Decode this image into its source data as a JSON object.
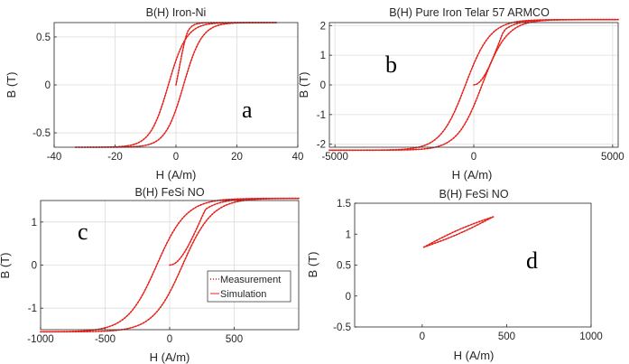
{
  "chart_data": [
    {
      "type": "line",
      "title": "B(H) Iron-Ni",
      "xlabel": "H (A/m)",
      "ylabel": "B (T)",
      "xlim": [
        -40,
        40
      ],
      "ylim": [
        -0.65,
        0.65
      ],
      "xticks": [
        -40,
        -20,
        0,
        20,
        40
      ],
      "yticks": [
        -0.5,
        0,
        0.5
      ],
      "xtick_labels": [
        "-40",
        "-20",
        "0",
        "20",
        "40"
      ],
      "ytick_labels": [
        "-0.5",
        "0",
        "0.5"
      ],
      "grid": true,
      "panel_label": "a",
      "loop": {
        "Hmax": 33,
        "Hc": 2.5,
        "Bs": 0.65,
        "Hs": 6,
        "Hi": 3,
        "width": 0.4,
        "initial": true,
        "seed": 0.7
      },
      "series": [
        {
          "name": "Measurement",
          "color": "#e8201a",
          "style": "dotted"
        },
        {
          "name": "Simulation",
          "color": "#e8201a",
          "style": "solid"
        }
      ]
    },
    {
      "type": "line",
      "title": "B(H) Pure Iron Telar 57 ARMCO",
      "xlabel": "H (A/m)",
      "ylabel": "B (T)",
      "xlim": [
        -5200,
        5200
      ],
      "ylim": [
        -2.1,
        2.1
      ],
      "xticks": [
        -5000,
        0,
        5000
      ],
      "yticks": [
        -2,
        -1,
        0,
        1,
        2
      ],
      "xtick_labels": [
        "-5000",
        "0",
        "5000"
      ],
      "ytick_labels": [
        "-2",
        "-1",
        "0",
        "1",
        "2"
      ],
      "grid": true,
      "panel_label": "b",
      "loop": {
        "Hmax": 5200,
        "Hc": 300,
        "Bs": 2.2,
        "Hs": 900,
        "Hi": 900,
        "width": 0.45,
        "initial": true,
        "seed": 0
      },
      "series": [
        {
          "name": "Measurement",
          "color": "#e8201a",
          "style": "dotted"
        },
        {
          "name": "Simulation",
          "color": "#e8201a",
          "style": "solid"
        }
      ]
    },
    {
      "type": "line",
      "title": "B(H) FeSi NO",
      "xlabel": "H (A/m)",
      "ylabel": "B (T)",
      "xlim": [
        -1000,
        1000
      ],
      "ylim": [
        -1.5,
        1.5
      ],
      "xticks": [
        -1000,
        -500,
        0,
        500
      ],
      "yticks": [
        -1,
        0,
        1
      ],
      "xtick_labels": [
        "-1000",
        "-500",
        "0",
        "500"
      ],
      "ytick_labels": [
        "-1",
        "0",
        "1"
      ],
      "grid": true,
      "panel_label": "c",
      "loop": {
        "Hmax": 1000,
        "Hc": 100,
        "Bs": 1.55,
        "Hs": 230,
        "Hi": 230,
        "width": 0.6,
        "initial": true,
        "seed": 0
      },
      "legend": {
        "placement": "center-right",
        "entries": [
          "Measurement",
          "Simulation"
        ]
      },
      "series": [
        {
          "name": "Measurement",
          "color": "#e8201a",
          "style": "dotted"
        },
        {
          "name": "Simulation",
          "color": "#e8201a",
          "style": "solid"
        }
      ]
    },
    {
      "type": "line",
      "title": "B(H) FeSi NO",
      "xlabel": "H (A/m)",
      "ylabel": "B (T)",
      "xlim": [
        -400,
        1000
      ],
      "ylim": [
        -0.5,
        1.5
      ],
      "xticks": [
        0,
        500,
        1000
      ],
      "yticks": [
        -0.5,
        0,
        0.5,
        1,
        1.5
      ],
      "xtick_labels": [
        "0",
        "500",
        "1000"
      ],
      "ytick_labels": [
        "-0.5",
        "0",
        "0.5",
        "1",
        "1.5"
      ],
      "grid": false,
      "panel_label": "d",
      "minor_loop": {
        "start": [
          10,
          0.79
        ],
        "end": [
          420,
          1.28
        ]
      },
      "series": [
        {
          "name": "Measurement",
          "color": "#e8201a",
          "style": "dotted"
        },
        {
          "name": "Simulation",
          "color": "#e8201a",
          "style": "solid"
        }
      ]
    }
  ]
}
